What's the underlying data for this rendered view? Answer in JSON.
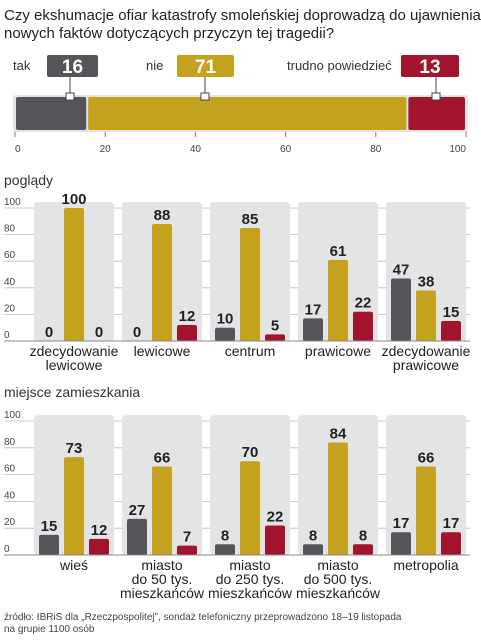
{
  "title_lines": [
    "Czy ekshumacje ofiar katastrofy smoleńskiej doprowadzą do ujawnienia",
    "nowych faktów dotyczących przyczyn tej tragedii?"
  ],
  "source_lines": [
    "źródło: IBRiS dla „Rzeczpospolitej”, sondaż telefoniczny przeprowadzono 18–19 listopada",
    "na grupie 1100 osób"
  ],
  "colors": {
    "tak": "#555459",
    "nie": "#c4a11e",
    "trudno": "#a3142e",
    "panel": "#e3e4e6",
    "text": "#222222",
    "grid": "#bdbdbd"
  },
  "chart_data": [
    {
      "type": "bar",
      "orientation": "horizontal-stacked",
      "categories": [
        "tak",
        "nie",
        "trudno powiedzieć"
      ],
      "values": [
        16,
        71,
        13
      ],
      "xlim": [
        0,
        100
      ],
      "xticks": [
        "0",
        "20",
        "40",
        "60",
        "80",
        "100"
      ]
    },
    {
      "type": "bar",
      "title": "poglądy",
      "categories": [
        [
          "zdecydowanie",
          "lewicowe"
        ],
        [
          "lewicowe"
        ],
        [
          "centrum"
        ],
        [
          "prawicowe"
        ],
        [
          "zdecydowanie",
          "prawicowe"
        ]
      ],
      "series": [
        {
          "name": "tak",
          "values": [
            0,
            0,
            10,
            17,
            47
          ]
        },
        {
          "name": "nie",
          "values": [
            100,
            88,
            85,
            61,
            38
          ]
        },
        {
          "name": "trudno powiedzieć",
          "values": [
            0,
            12,
            5,
            22,
            15
          ]
        }
      ],
      "ylim": [
        0,
        100
      ],
      "yticks": [
        "0",
        "20",
        "40",
        "60",
        "80",
        "100"
      ]
    },
    {
      "type": "bar",
      "title": "miejsce zamieszkania",
      "categories": [
        [
          "wieś"
        ],
        [
          "miasto",
          "do 50 tys.",
          "mieszkańców"
        ],
        [
          "miasto",
          "do 250 tys.",
          "mieszkańców"
        ],
        [
          "miasto",
          "do 500 tys.",
          "mieszkańców"
        ],
        [
          "metropolia"
        ]
      ],
      "series": [
        {
          "name": "tak",
          "values": [
            15,
            27,
            8,
            8,
            17
          ]
        },
        {
          "name": "nie",
          "values": [
            73,
            66,
            70,
            84,
            66
          ]
        },
        {
          "name": "trudno powiedzieć",
          "values": [
            12,
            7,
            22,
            8,
            17
          ]
        }
      ],
      "ylim": [
        0,
        100
      ],
      "yticks": [
        "0",
        "20",
        "40",
        "60",
        "80",
        "100"
      ]
    }
  ]
}
